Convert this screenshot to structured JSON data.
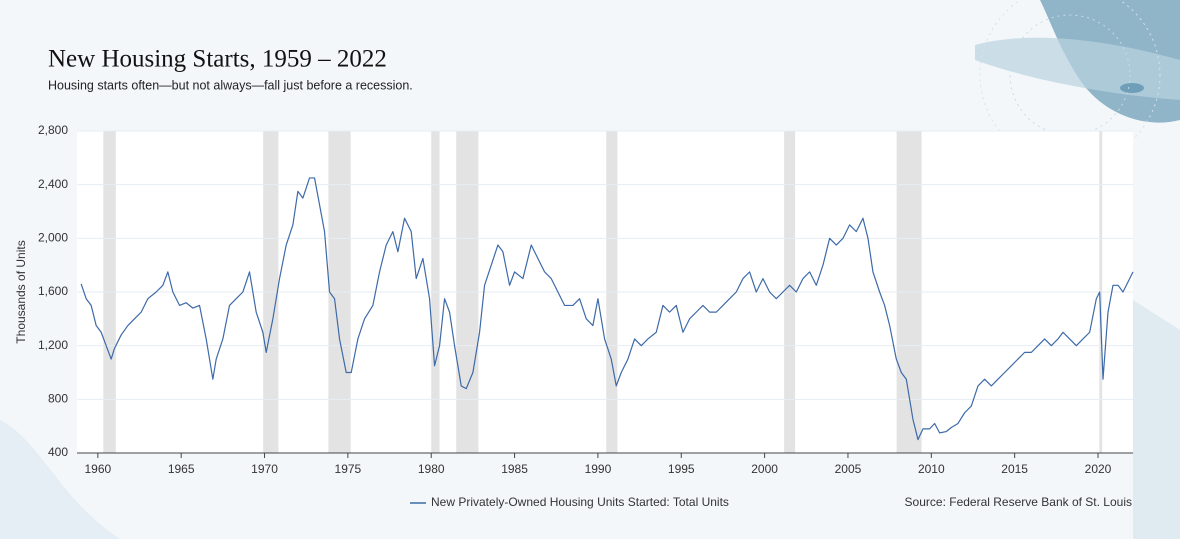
{
  "chart_data": {
    "type": "line",
    "title": "New Housing Starts, 1959 – 2022",
    "subtitle": "Housing starts often—but not always—fall just before a recession.",
    "y_label": "Thousands of Units",
    "source": "Source: Federal Reserve Bank of St. Louis",
    "xlim": [
      1958.75,
      2022.1
    ],
    "ylim": [
      400,
      2800
    ],
    "xticks": [
      1960,
      1965,
      1970,
      1975,
      1980,
      1985,
      1990,
      1995,
      2000,
      2005,
      2010,
      2015,
      2020
    ],
    "yticks": [
      400,
      800,
      {
        "value": 1200,
        "label": "1,200"
      },
      {
        "value": 1600,
        "label": "1,600"
      },
      {
        "value": 2000,
        "label": "2,000"
      },
      {
        "value": 2400,
        "label": "2,400"
      },
      {
        "value": 2800,
        "label": "2,800"
      }
    ],
    "grid": true,
    "legend": "bottom",
    "recession_color": "#e3e3e3",
    "recessions": [
      [
        1960.33,
        1961.08
      ],
      [
        1969.92,
        1970.83
      ],
      [
        1973.83,
        1975.17
      ],
      [
        1980.0,
        1980.5
      ],
      [
        1981.5,
        1982.83
      ],
      [
        1990.5,
        1991.17
      ],
      [
        2001.17,
        2001.83
      ],
      [
        2007.92,
        2009.42
      ],
      [
        2020.08,
        2020.25
      ]
    ],
    "x": [
      1959.0,
      1959.3,
      1959.6,
      1959.9,
      1960.2,
      1960.5,
      1960.8,
      1961.0,
      1961.4,
      1961.8,
      1962.2,
      1962.6,
      1963.0,
      1963.5,
      1963.9,
      1964.2,
      1964.5,
      1964.9,
      1965.3,
      1965.7,
      1966.1,
      1966.5,
      1966.9,
      1967.1,
      1967.5,
      1967.9,
      1968.3,
      1968.7,
      1969.1,
      1969.5,
      1969.9,
      1970.1,
      1970.5,
      1970.9,
      1971.3,
      1971.7,
      1972.0,
      1972.3,
      1972.7,
      1973.0,
      1973.3,
      1973.6,
      1973.9,
      1974.2,
      1974.5,
      1974.9,
      1975.2,
      1975.6,
      1976.0,
      1976.5,
      1976.9,
      1977.3,
      1977.7,
      1978.0,
      1978.4,
      1978.8,
      1979.1,
      1979.5,
      1979.9,
      1980.2,
      1980.5,
      1980.8,
      1981.1,
      1981.4,
      1981.8,
      1982.1,
      1982.5,
      1982.9,
      1983.2,
      1983.6,
      1984.0,
      1984.3,
      1984.7,
      1985.0,
      1985.5,
      1986.0,
      1986.4,
      1986.8,
      1987.2,
      1987.6,
      1988.0,
      1988.5,
      1988.9,
      1989.3,
      1989.7,
      1990.0,
      1990.4,
      1990.8,
      1991.1,
      1991.4,
      1991.8,
      1992.2,
      1992.6,
      1993.0,
      1993.5,
      1993.9,
      1994.3,
      1994.7,
      1995.1,
      1995.5,
      1995.9,
      1996.3,
      1996.7,
      1997.1,
      1997.5,
      1997.9,
      1998.3,
      1998.7,
      1999.1,
      1999.5,
      1999.9,
      2000.3,
      2000.7,
      2001.1,
      2001.5,
      2001.9,
      2002.3,
      2002.7,
      2003.1,
      2003.5,
      2003.9,
      2004.3,
      2004.7,
      2005.1,
      2005.5,
      2005.9,
      2006.2,
      2006.5,
      2006.9,
      2007.2,
      2007.5,
      2007.9,
      2008.2,
      2008.5,
      2008.9,
      2009.2,
      2009.5,
      2009.9,
      2010.2,
      2010.5,
      2010.9,
      2011.2,
      2011.6,
      2012.0,
      2012.4,
      2012.8,
      2013.2,
      2013.6,
      2014.0,
      2014.4,
      2014.8,
      2015.2,
      2015.6,
      2016.0,
      2016.4,
      2016.8,
      2017.2,
      2017.6,
      2017.9,
      2018.3,
      2018.7,
      2019.1,
      2019.5,
      2019.9,
      2020.1,
      2020.3,
      2020.6,
      2020.9,
      2021.2,
      2021.5,
      2021.9,
      2022.1
    ],
    "series": [
      {
        "name": "New Privately-Owned Housing Units Started: Total Units",
        "color": "#3d6aa8",
        "values": [
          1660,
          1550,
          1500,
          1350,
          1300,
          1200,
          1100,
          1180,
          1280,
          1350,
          1400,
          1450,
          1550,
          1600,
          1650,
          1750,
          1600,
          1500,
          1520,
          1480,
          1500,
          1250,
          950,
          1100,
          1250,
          1500,
          1550,
          1600,
          1750,
          1450,
          1300,
          1150,
          1400,
          1700,
          1950,
          2100,
          2350,
          2300,
          2450,
          2450,
          2250,
          2050,
          1600,
          1550,
          1250,
          1000,
          1000,
          1250,
          1400,
          1500,
          1750,
          1950,
          2050,
          1900,
          2150,
          2050,
          1700,
          1850,
          1550,
          1050,
          1200,
          1550,
          1450,
          1200,
          900,
          880,
          1000,
          1300,
          1650,
          1800,
          1950,
          1900,
          1650,
          1750,
          1700,
          1950,
          1850,
          1750,
          1700,
          1600,
          1500,
          1500,
          1550,
          1400,
          1350,
          1550,
          1250,
          1100,
          900,
          1000,
          1100,
          1250,
          1200,
          1250,
          1300,
          1500,
          1450,
          1500,
          1300,
          1400,
          1450,
          1500,
          1450,
          1450,
          1500,
          1550,
          1600,
          1700,
          1750,
          1600,
          1700,
          1600,
          1550,
          1600,
          1650,
          1600,
          1700,
          1750,
          1650,
          1800,
          2000,
          1950,
          2000,
          2100,
          2050,
          2150,
          2000,
          1750,
          1600,
          1500,
          1350,
          1100,
          1000,
          950,
          650,
          500,
          580,
          580,
          620,
          550,
          560,
          590,
          620,
          700,
          750,
          900,
          950,
          900,
          950,
          1000,
          1050,
          1100,
          1150,
          1150,
          1200,
          1250,
          1200,
          1250,
          1300,
          1250,
          1200,
          1250,
          1300,
          1550,
          1600,
          950,
          1450,
          1650,
          1650,
          1600,
          1700,
          1750
        ]
      }
    ]
  }
}
